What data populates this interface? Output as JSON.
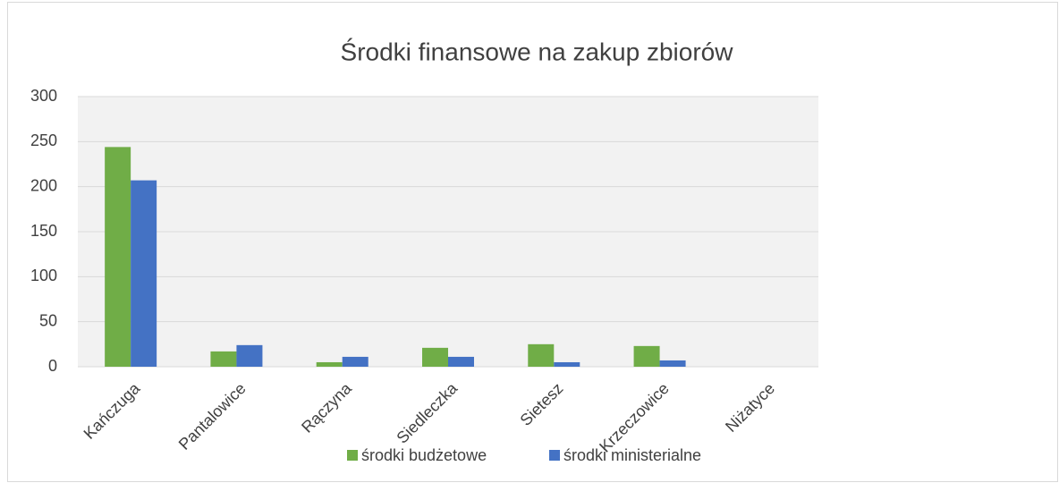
{
  "chart_data": {
    "type": "bar",
    "title": "Środki finansowe na zakup zbiorów",
    "categories": [
      "Kańczuga",
      "Pantalowice",
      "Rączyna",
      "Siedleczka",
      "Sietesz",
      "Krzeczowice",
      "Niżatyce"
    ],
    "series": [
      {
        "name": "środki budżetowe",
        "color": "#70ad47",
        "values": [
          244,
          17,
          5,
          21,
          25,
          23,
          0
        ]
      },
      {
        "name": "środki ministerialne",
        "color": "#4472c4",
        "values": [
          207,
          24,
          11,
          11,
          5,
          7,
          0
        ]
      }
    ],
    "ylim": [
      0,
      300
    ],
    "yticks": [
      0,
      50,
      100,
      150,
      200,
      250,
      300
    ],
    "grid": true,
    "legend": "bottom"
  }
}
